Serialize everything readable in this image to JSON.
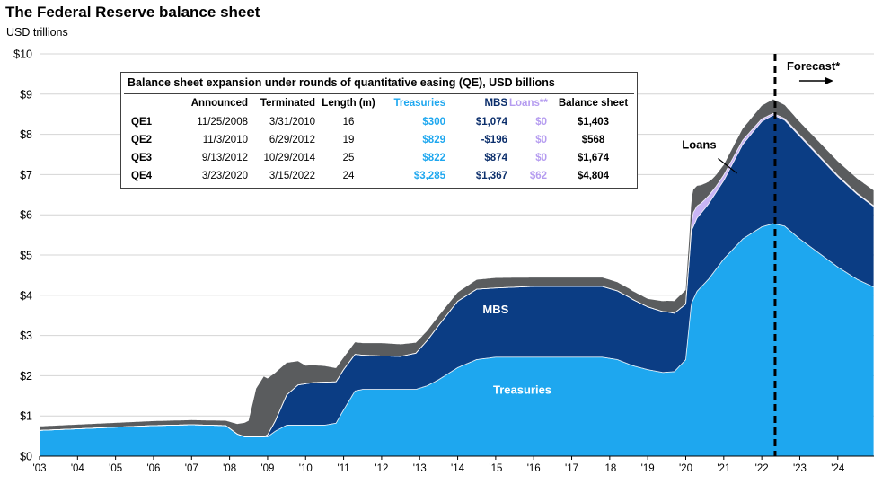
{
  "title": "The Federal Reserve balance sheet",
  "subtitle": "USD trillions",
  "colors": {
    "treasuries": "#1ea7ef",
    "mbs": "#0b3d84",
    "loans": "#c9b5f5",
    "other": "#5a5c5e",
    "forecast_line": "#000000"
  },
  "chart_data": {
    "type": "area",
    "stacked": true,
    "title": "The Federal Reserve balance sheet",
    "ylabel": "USD trillions",
    "ylim": [
      0,
      10
    ],
    "xlim": [
      2003,
      2024.95
    ],
    "y_ticks": [
      "$0",
      "$1",
      "$2",
      "$3",
      "$4",
      "$5",
      "$6",
      "$7",
      "$8",
      "$9",
      "$10"
    ],
    "x_ticks": [
      "'03",
      "'04",
      "'05",
      "'06",
      "'07",
      "'08",
      "'09",
      "'10",
      "'11",
      "'12",
      "'13",
      "'14",
      "'15",
      "'16",
      "'17",
      "'18",
      "'19",
      "'20",
      "'21",
      "'22",
      "'23",
      "'24"
    ],
    "series_labels": {
      "treasuries": "Treasuries",
      "mbs": "MBS",
      "loans": "Loans"
    },
    "forecast": {
      "label": "Forecast*",
      "start_year": 2022.35
    },
    "series": [
      {
        "name": "Treasuries",
        "points": [
          [
            2003,
            0.64
          ],
          [
            2003.5,
            0.66
          ],
          [
            2004,
            0.68
          ],
          [
            2005,
            0.72
          ],
          [
            2006,
            0.76
          ],
          [
            2007,
            0.78
          ],
          [
            2007.9,
            0.76
          ],
          [
            2008.2,
            0.55
          ],
          [
            2008.4,
            0.48
          ],
          [
            2009.0,
            0.48
          ],
          [
            2009.2,
            0.62
          ],
          [
            2009.5,
            0.77
          ],
          [
            2010.5,
            0.77
          ],
          [
            2010.8,
            0.82
          ],
          [
            2011.0,
            1.15
          ],
          [
            2011.3,
            1.62
          ],
          [
            2011.5,
            1.66
          ],
          [
            2012,
            1.66
          ],
          [
            2012.5,
            1.66
          ],
          [
            2012.9,
            1.66
          ],
          [
            2013.2,
            1.75
          ],
          [
            2013.5,
            1.9
          ],
          [
            2014.0,
            2.2
          ],
          [
            2014.5,
            2.4
          ],
          [
            2015,
            2.46
          ],
          [
            2016,
            2.46
          ],
          [
            2017,
            2.46
          ],
          [
            2017.8,
            2.46
          ],
          [
            2018.2,
            2.4
          ],
          [
            2018.6,
            2.25
          ],
          [
            2019.0,
            2.15
          ],
          [
            2019.4,
            2.08
          ],
          [
            2019.7,
            2.1
          ],
          [
            2020.0,
            2.4
          ],
          [
            2020.15,
            3.8
          ],
          [
            2020.3,
            4.1
          ],
          [
            2020.6,
            4.4
          ],
          [
            2021.0,
            4.9
          ],
          [
            2021.5,
            5.4
          ],
          [
            2022.0,
            5.7
          ],
          [
            2022.3,
            5.78
          ],
          [
            2022.6,
            5.72
          ],
          [
            2023,
            5.4
          ],
          [
            2023.5,
            5.05
          ],
          [
            2024,
            4.7
          ],
          [
            2024.5,
            4.4
          ],
          [
            2024.95,
            4.2
          ]
        ]
      },
      {
        "name": "MBS",
        "points": [
          [
            2003,
            0
          ],
          [
            2008.9,
            0
          ],
          [
            2009.0,
            0.05
          ],
          [
            2009.2,
            0.25
          ],
          [
            2009.5,
            0.75
          ],
          [
            2009.8,
            1.0
          ],
          [
            2010.2,
            1.06
          ],
          [
            2010.5,
            1.07
          ],
          [
            2011,
            1.0
          ],
          [
            2011.5,
            0.85
          ],
          [
            2012,
            0.83
          ],
          [
            2012.5,
            0.82
          ],
          [
            2012.9,
            0.9
          ],
          [
            2013.5,
            1.35
          ],
          [
            2014.0,
            1.65
          ],
          [
            2014.5,
            1.75
          ],
          [
            2015,
            1.72
          ],
          [
            2016,
            1.76
          ],
          [
            2017,
            1.76
          ],
          [
            2017.8,
            1.76
          ],
          [
            2018.5,
            1.67
          ],
          [
            2019.0,
            1.56
          ],
          [
            2019.5,
            1.5
          ],
          [
            2020.0,
            1.38
          ],
          [
            2020.15,
            1.8
          ],
          [
            2020.5,
            1.85
          ],
          [
            2021,
            1.95
          ],
          [
            2021.5,
            2.35
          ],
          [
            2022.0,
            2.62
          ],
          [
            2022.3,
            2.7
          ],
          [
            2023,
            2.55
          ],
          [
            2024,
            2.25
          ],
          [
            2024.95,
            2.0
          ]
        ]
      },
      {
        "name": "Loans",
        "points": [
          [
            2003,
            0
          ],
          [
            2020.1,
            0
          ],
          [
            2020.2,
            0.35
          ],
          [
            2020.4,
            0.25
          ],
          [
            2020.8,
            0.15
          ],
          [
            2021.3,
            0.12
          ],
          [
            2021.8,
            0.08
          ],
          [
            2022.3,
            0.04
          ],
          [
            2024.95,
            0.02
          ]
        ]
      },
      {
        "name": "Other",
        "points": [
          [
            2003,
            0.1
          ],
          [
            2007.9,
            0.12
          ],
          [
            2008.2,
            0.25
          ],
          [
            2008.5,
            0.4
          ],
          [
            2008.7,
            1.2
          ],
          [
            2008.9,
            1.5
          ],
          [
            2009.2,
            1.2
          ],
          [
            2009.5,
            0.8
          ],
          [
            2010,
            0.45
          ],
          [
            2010.5,
            0.4
          ],
          [
            2011,
            0.3
          ],
          [
            2011.5,
            0.3
          ],
          [
            2012,
            0.32
          ],
          [
            2012.5,
            0.3
          ],
          [
            2013,
            0.25
          ],
          [
            2014,
            0.22
          ],
          [
            2015,
            0.25
          ],
          [
            2016,
            0.22
          ],
          [
            2017,
            0.22
          ],
          [
            2018,
            0.22
          ],
          [
            2019,
            0.2
          ],
          [
            2020.0,
            0.35
          ],
          [
            2020.15,
            0.6
          ],
          [
            2020.3,
            0.5
          ],
          [
            2020.7,
            0.3
          ],
          [
            2021,
            0.25
          ],
          [
            2022.3,
            0.35
          ],
          [
            2023,
            0.32
          ],
          [
            2024,
            0.35
          ],
          [
            2024.95,
            0.38
          ]
        ]
      }
    ]
  },
  "table": {
    "title": "Balance sheet expansion under rounds of quantitative easing (QE), USD billions",
    "headers": [
      "",
      "Announced",
      "Terminated",
      "Length (m)",
      "Treasuries",
      "MBS",
      "Loans**",
      "Balance sheet"
    ],
    "rows": [
      [
        "QE1",
        "11/25/2008",
        "3/31/2010",
        "16",
        "$300",
        "$1,074",
        "$0",
        "$1,403"
      ],
      [
        "QE2",
        "11/3/2010",
        "6/29/2012",
        "19",
        "$829",
        "-$196",
        "$0",
        "$568"
      ],
      [
        "QE3",
        "9/13/2012",
        "10/29/2014",
        "25",
        "$822",
        "$874",
        "$0",
        "$1,674"
      ],
      [
        "QE4",
        "3/23/2020",
        "3/15/2022",
        "24",
        "$3,285",
        "$1,367",
        "$62",
        "$4,804"
      ]
    ]
  }
}
